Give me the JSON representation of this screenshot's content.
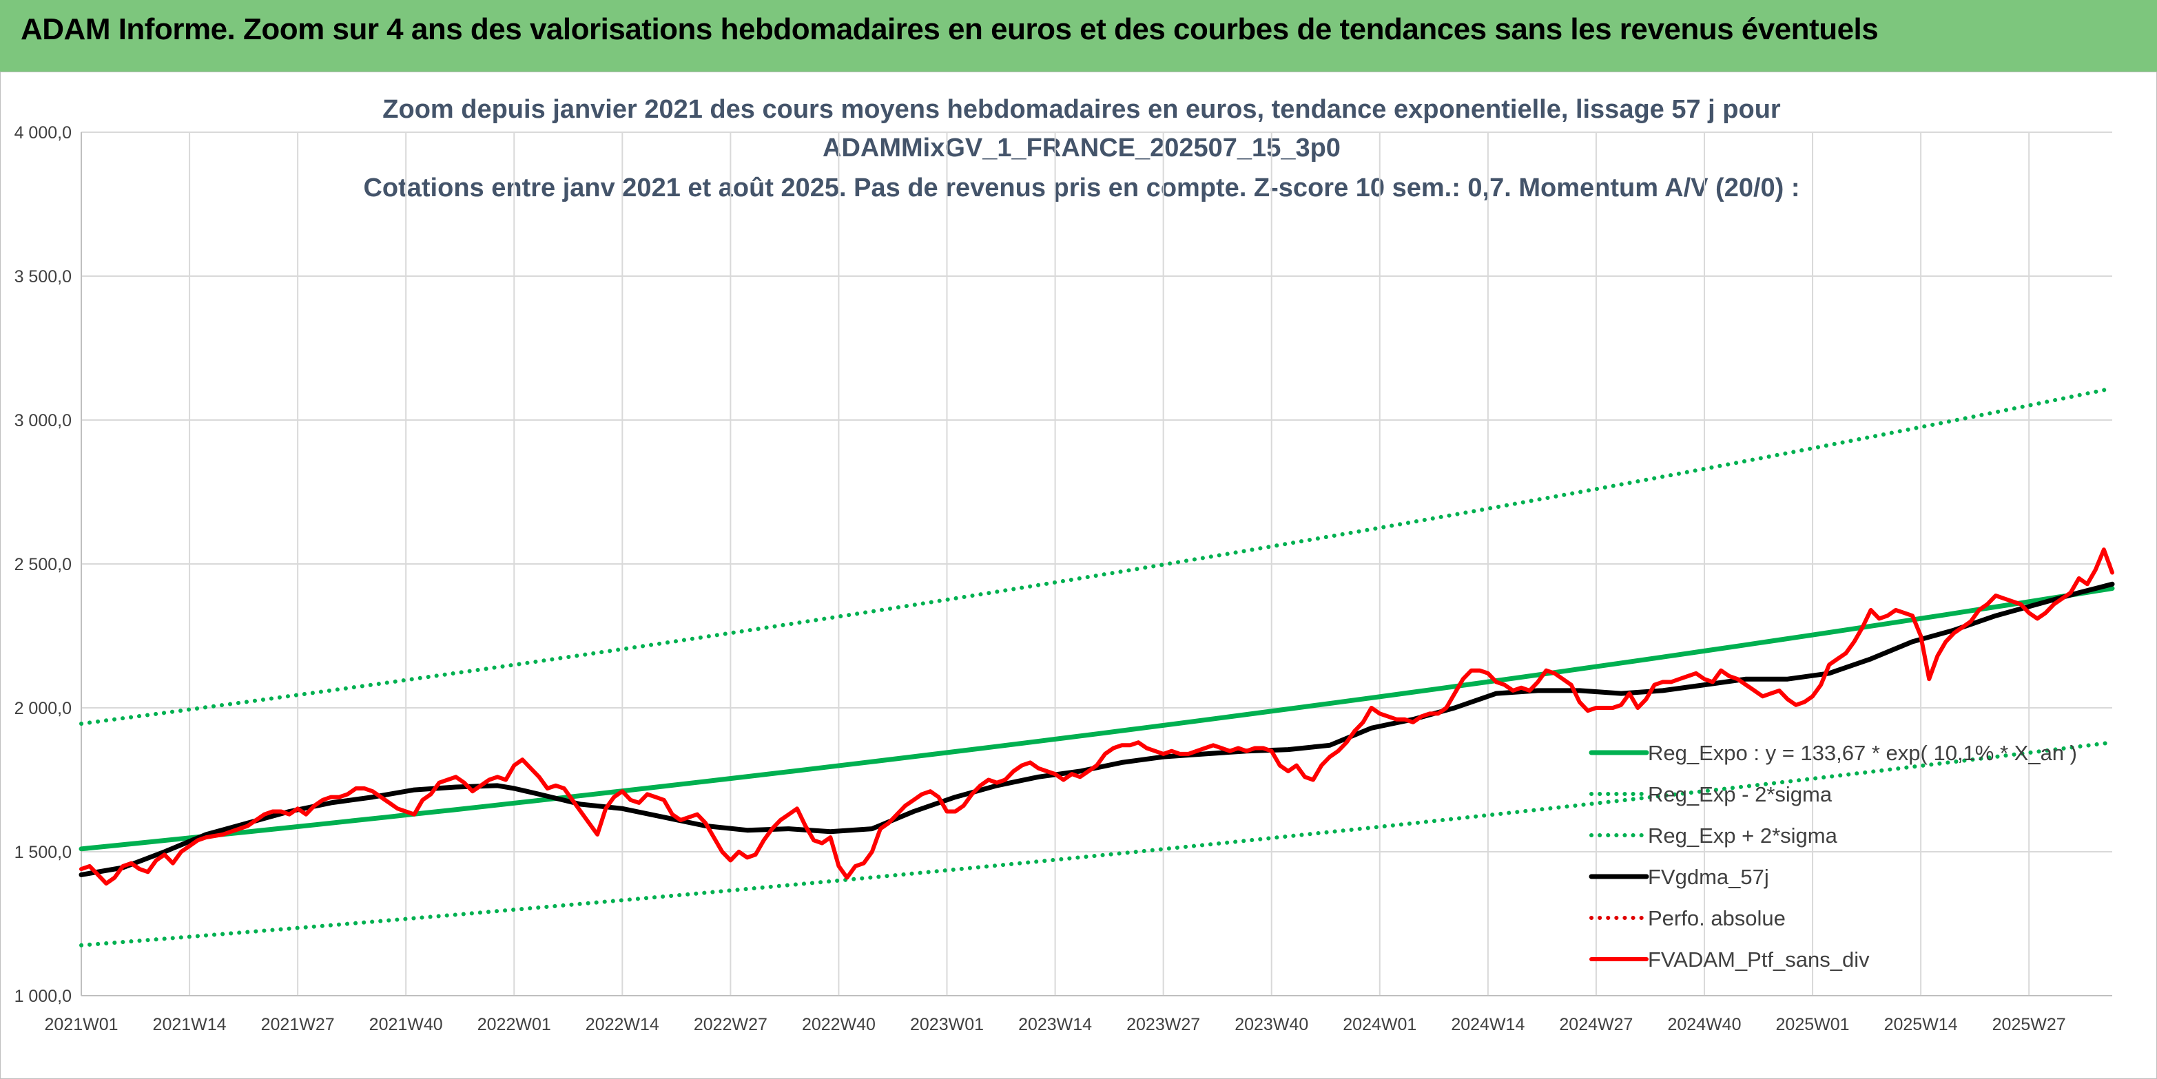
{
  "header": {
    "title": "ADAM Informe. Zoom sur 4 ans des valorisations hebdomadaires en euros et des courbes de tendances sans les revenus éventuels"
  },
  "colors": {
    "banner": "#7dc67d",
    "accent": "#f5c400",
    "title_text": "#44546a",
    "reg_expo": "#00b050",
    "fvgdma": "#000000",
    "perfo": "#e00000",
    "fvadam": "#ff0000"
  },
  "chart_data": {
    "type": "line",
    "title_lines": [
      "Zoom depuis janvier 2021 des cours moyens hebdomadaires en euros, tendance exponentielle, lissage 57 j pour",
      "ADAMMixGV_1_FRANCE_202507_15_3p0",
      "Cotations entre janv 2021 et août 2025. Pas de revenus pris en compte. Z-score 10 sem.: 0,7. Momentum A/V (20/0) :"
    ],
    "xlabel": "",
    "ylabel": "",
    "ylim": [
      1000,
      4000
    ],
    "grid": true,
    "legend_position": "right-inside",
    "y_ticks": [
      "1 000,0",
      "1 500,0",
      "2 000,0",
      "2 500,0",
      "3 000,0",
      "3 500,0",
      "4 000,0"
    ],
    "y_tick_values": [
      1000,
      1500,
      2000,
      2500,
      3000,
      3500,
      4000
    ],
    "x_ticks": [
      "2021W01",
      "2021W14",
      "2021W27",
      "2021W40",
      "2022W01",
      "2022W14",
      "2022W27",
      "2022W40",
      "2023W01",
      "2023W14",
      "2023W27",
      "2023W40",
      "2024W01",
      "2024W14",
      "2024W27",
      "2024W40",
      "2025W01",
      "2025W14",
      "2025W27"
    ],
    "x_tick_weeks": [
      0,
      13,
      26,
      39,
      52,
      65,
      78,
      91,
      104,
      117,
      130,
      143,
      156,
      169,
      182,
      195,
      208,
      221,
      234
    ],
    "x_range_weeks": [
      0,
      244
    ],
    "series": [
      {
        "name": "Reg_Expo : y = 133,67 * exp( 10,1% * X_an )",
        "style": "solid-thick",
        "color": "#00b050",
        "weeks": [
          0,
          244
        ],
        "values": [
          1510,
          2415
        ],
        "curve": "exponential"
      },
      {
        "name": "Reg_Exp - 2*sigma",
        "style": "dotted",
        "color": "#00b050",
        "weeks": [
          0,
          244
        ],
        "values": [
          1175,
          1880
        ],
        "curve": "exponential"
      },
      {
        "name": "Reg_Exp + 2*sigma",
        "style": "dotted",
        "color": "#00b050",
        "weeks": [
          0,
          244
        ],
        "values": [
          1945,
          3110
        ],
        "curve": "exponential"
      },
      {
        "name": "FVgdma_57j",
        "style": "solid-thick",
        "color": "#000000",
        "weeks": [
          0,
          5,
          10,
          15,
          20,
          25,
          30,
          35,
          40,
          45,
          50,
          52,
          55,
          60,
          65,
          70,
          75,
          80,
          85,
          90,
          95,
          100,
          105,
          110,
          115,
          120,
          125,
          130,
          135,
          140,
          145,
          150,
          155,
          160,
          165,
          170,
          175,
          180,
          185,
          190,
          195,
          200,
          205,
          210,
          215,
          220,
          225,
          230,
          235,
          240,
          244
        ],
        "values": [
          1420,
          1445,
          1500,
          1560,
          1600,
          1640,
          1670,
          1690,
          1715,
          1725,
          1730,
          1720,
          1700,
          1665,
          1650,
          1620,
          1590,
          1575,
          1580,
          1570,
          1580,
          1640,
          1690,
          1730,
          1760,
          1780,
          1810,
          1830,
          1840,
          1850,
          1855,
          1870,
          1930,
          1960,
          2000,
          2050,
          2060,
          2060,
          2050,
          2060,
          2080,
          2100,
          2100,
          2120,
          2170,
          2230,
          2270,
          2320,
          2360,
          2400,
          2430
        ]
      },
      {
        "name": "Perfo. absolue",
        "style": "dotted",
        "color": "#e00000",
        "weeks": [],
        "values": []
      },
      {
        "name": "FVADAM_Ptf_sans_div",
        "style": "solid-thick",
        "color": "#ff0000",
        "weeks": [
          0,
          1,
          2,
          3,
          4,
          5,
          6,
          7,
          8,
          9,
          10,
          11,
          12,
          13,
          14,
          15,
          16,
          17,
          18,
          19,
          20,
          21,
          22,
          23,
          24,
          25,
          26,
          27,
          28,
          29,
          30,
          31,
          32,
          33,
          34,
          35,
          36,
          37,
          38,
          39,
          40,
          41,
          42,
          43,
          44,
          45,
          46,
          47,
          48,
          49,
          50,
          51,
          52,
          53,
          54,
          55,
          56,
          57,
          58,
          59,
          60,
          61,
          62,
          63,
          64,
          65,
          66,
          67,
          68,
          69,
          70,
          71,
          72,
          73,
          74,
          75,
          76,
          77,
          78,
          79,
          80,
          81,
          82,
          83,
          84,
          85,
          86,
          87,
          88,
          89,
          90,
          91,
          92,
          93,
          94,
          95,
          96,
          97,
          98,
          99,
          100,
          101,
          102,
          103,
          104,
          105,
          106,
          107,
          108,
          109,
          110,
          111,
          112,
          113,
          114,
          115,
          116,
          117,
          118,
          119,
          120,
          121,
          122,
          123,
          124,
          125,
          126,
          127,
          128,
          129,
          130,
          131,
          132,
          133,
          134,
          135,
          136,
          137,
          138,
          139,
          140,
          141,
          142,
          143,
          144,
          145,
          146,
          147,
          148,
          149,
          150,
          151,
          152,
          153,
          154,
          155,
          156,
          157,
          158,
          159,
          160,
          161,
          162,
          163,
          164,
          165,
          166,
          167,
          168,
          169,
          170,
          171,
          172,
          173,
          174,
          175,
          176,
          177,
          178,
          179,
          180,
          181,
          182,
          183,
          184,
          185,
          186,
          187,
          188,
          189,
          190,
          191,
          192,
          193,
          194,
          195,
          196,
          197,
          198,
          199,
          200,
          201,
          202,
          203,
          204,
          205,
          206,
          207,
          208,
          209,
          210,
          211,
          212,
          213,
          214,
          215,
          216,
          217,
          218,
          219,
          220,
          221,
          222,
          223,
          224,
          225,
          226,
          227,
          228,
          229,
          230,
          231,
          232,
          233,
          234,
          235,
          236,
          237,
          238,
          239,
          240,
          241,
          242,
          243,
          244
        ],
        "values": [
          1440,
          1450,
          1420,
          1390,
          1410,
          1450,
          1460,
          1440,
          1430,
          1470,
          1490,
          1460,
          1500,
          1520,
          1540,
          1550,
          1555,
          1560,
          1570,
          1580,
          1590,
          1610,
          1630,
          1640,
          1640,
          1630,
          1650,
          1630,
          1660,
          1680,
          1690,
          1690,
          1700,
          1720,
          1720,
          1710,
          1690,
          1670,
          1650,
          1640,
          1630,
          1680,
          1700,
          1740,
          1750,
          1760,
          1740,
          1710,
          1730,
          1750,
          1760,
          1750,
          1800,
          1820,
          1790,
          1760,
          1720,
          1730,
          1720,
          1680,
          1640,
          1600,
          1560,
          1650,
          1690,
          1710,
          1680,
          1670,
          1700,
          1690,
          1680,
          1630,
          1610,
          1620,
          1630,
          1600,
          1550,
          1500,
          1470,
          1500,
          1480,
          1490,
          1540,
          1580,
          1610,
          1630,
          1650,
          1590,
          1540,
          1530,
          1550,
          1450,
          1410,
          1450,
          1460,
          1500,
          1580,
          1600,
          1630,
          1660,
          1680,
          1700,
          1710,
          1690,
          1640,
          1640,
          1660,
          1700,
          1730,
          1750,
          1740,
          1750,
          1780,
          1800,
          1810,
          1790,
          1780,
          1770,
          1750,
          1770,
          1760,
          1780,
          1800,
          1840,
          1860,
          1870,
          1870,
          1880,
          1860,
          1850,
          1840,
          1850,
          1840,
          1840,
          1850,
          1860,
          1870,
          1860,
          1850,
          1860,
          1850,
          1860,
          1860,
          1850,
          1800,
          1780,
          1800,
          1760,
          1750,
          1800,
          1830,
          1850,
          1880,
          1920,
          1950,
          2000,
          1980,
          1970,
          1960,
          1960,
          1950,
          1970,
          1980,
          1980,
          2000,
          2050,
          2100,
          2130,
          2130,
          2120,
          2090,
          2080,
          2060,
          2070,
          2060,
          2090,
          2130,
          2120,
          2100,
          2080,
          2020,
          1990,
          2000,
          2000,
          2000,
          2010,
          2050,
          2000,
          2030,
          2080,
          2090,
          2090,
          2100,
          2110,
          2120,
          2100,
          2090,
          2130,
          2110,
          2100,
          2080,
          2060,
          2040,
          2050,
          2060,
          2030,
          2010,
          2020,
          2040,
          2080,
          2150,
          2170,
          2190,
          2230,
          2280,
          2340,
          2310,
          2320,
          2340,
          2330,
          2320,
          2250,
          2100,
          2180,
          2230,
          2260,
          2280,
          2300,
          2340,
          2360,
          2390,
          2380,
          2370,
          2360,
          2330,
          2310,
          2330,
          2360,
          2380,
          2400,
          2450,
          2430,
          2480,
          2550,
          2470
        ]
      }
    ]
  }
}
